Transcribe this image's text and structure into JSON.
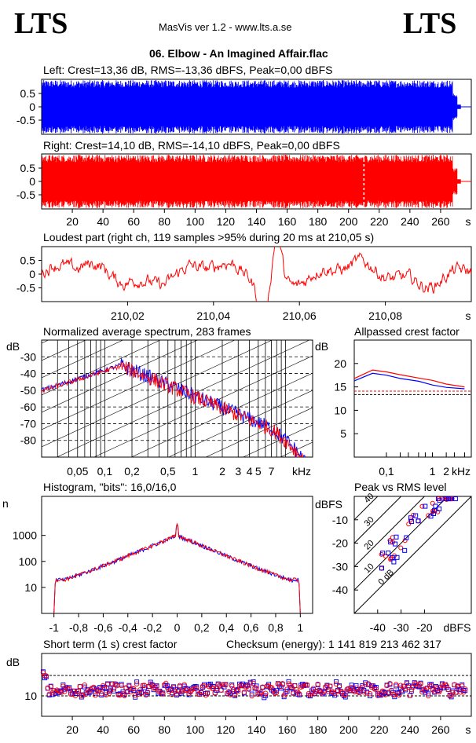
{
  "header": {
    "logo_left": "LTS",
    "logo_right": "LTS",
    "app": "MasVis ver 1.2 - www.lts.a.se",
    "track": "06. Elbow - An Imagined Affair.flac"
  },
  "colors": {
    "left": "#0000ff",
    "right": "#ff0000"
  },
  "chart_data": [
    {
      "id": "left_waveform",
      "type": "area",
      "title": "Left: Crest=13,36 dB, RMS=-13,36 dBFS, Peak=0,00 dBFS",
      "ylim": [
        -1,
        1
      ],
      "yticks": [
        "0.5",
        "0",
        "-0.5"
      ],
      "xlim": [
        0,
        280
      ]
    },
    {
      "id": "right_waveform",
      "type": "area",
      "title": "Right: Crest=14,10 dB, RMS=-14,10 dBFS, Peak=0,00 dBFS",
      "ylim": [
        -1,
        1
      ],
      "yticks": [
        "0.5",
        "0",
        "-0.5"
      ],
      "xlim": [
        0,
        280
      ],
      "xticks": [
        "20",
        "40",
        "60",
        "80",
        "100",
        "120",
        "140",
        "160",
        "180",
        "200",
        "220",
        "240",
        "260"
      ],
      "xunit": "s",
      "marker_x": 210.05
    },
    {
      "id": "loudest_part",
      "type": "line",
      "title": "Loudest part (right ch, 119 samples >95% during 20 ms at 210,05 s)",
      "ylim": [
        -1,
        1
      ],
      "yticks": [
        "0.5",
        "0",
        "-0.5"
      ],
      "xlim": [
        210.0,
        210.1
      ],
      "xticks": [
        "210,02",
        "210,04",
        "210,06",
        "210,08"
      ],
      "xunit": "s"
    },
    {
      "id": "spectrum",
      "type": "line",
      "title": "Normalized average spectrum, 283 frames",
      "ylabel": "dB",
      "yticks": [
        "-30",
        "-40",
        "-50",
        "-60",
        "-70",
        "-80"
      ],
      "ylim": [
        -90,
        -20
      ],
      "xticks": [
        "0,05",
        "0,1",
        "0,2",
        "0,5",
        "1",
        "2",
        "3",
        "4",
        "5",
        "7"
      ],
      "xunit": "kHz",
      "log_x": true
    },
    {
      "id": "allpassed_crest",
      "type": "line",
      "title": "Allpassed crest factor",
      "ylabel": "dB",
      "yticks": [
        "20",
        "15",
        "10",
        "5"
      ],
      "ylim": [
        0,
        25
      ],
      "xticks": [
        "0,1",
        "1",
        "2"
      ],
      "xunit": "kHz",
      "log_x": true,
      "series": [
        {
          "color": "#ff0000",
          "x": [
            0.02,
            0.05,
            0.1,
            0.2,
            0.5,
            1,
            2,
            5
          ],
          "values": [
            16.8,
            18.6,
            18.2,
            17.6,
            16.9,
            16.4,
            15.6,
            15.0
          ]
        },
        {
          "color": "#0000ff",
          "x": [
            0.02,
            0.05,
            0.1,
            0.2,
            0.5,
            1,
            2,
            5
          ],
          "values": [
            16.3,
            17.9,
            17.5,
            16.8,
            16.2,
            15.4,
            14.9,
            14.6
          ]
        }
      ],
      "ref_red": 14.1,
      "ref_blue": 13.36
    },
    {
      "id": "histogram",
      "type": "line",
      "title": "Histogram, \"bits\": 16,0/16,0",
      "ylabel": "n",
      "yticks": [
        "1000",
        "100",
        "10"
      ],
      "log_y": true,
      "xticks": [
        "-1",
        "-0,8",
        "-0,6",
        "-0,4",
        "-0,2",
        "0",
        "0,2",
        "0,4",
        "0,6",
        "0,8",
        "1"
      ],
      "xlim": [
        -1.1,
        1.1
      ]
    },
    {
      "id": "peak_vs_rms",
      "type": "scatter",
      "title": "Peak vs RMS level",
      "ylabel": "dBFS",
      "yticks": [
        "-10",
        "-20",
        "-30",
        "-40"
      ],
      "xticks": [
        "-40",
        "-30",
        "-20"
      ],
      "xunit": "dBFS",
      "diagonal_labels": [
        "40",
        "30",
        "20",
        "10",
        "0 dB"
      ]
    },
    {
      "id": "short_term_crest",
      "type": "scatter",
      "title": "Short term (1 s) crest factor",
      "ylabel": "dB",
      "yticks": [
        "10"
      ],
      "xlim": [
        0,
        280
      ],
      "xticks": [
        "20",
        "40",
        "60",
        "80",
        "100",
        "120",
        "140",
        "160",
        "180",
        "200",
        "220",
        "240",
        "260"
      ],
      "xunit": "s",
      "checksum": "Checksum (energy):  1 141 819 213 462 317"
    }
  ]
}
